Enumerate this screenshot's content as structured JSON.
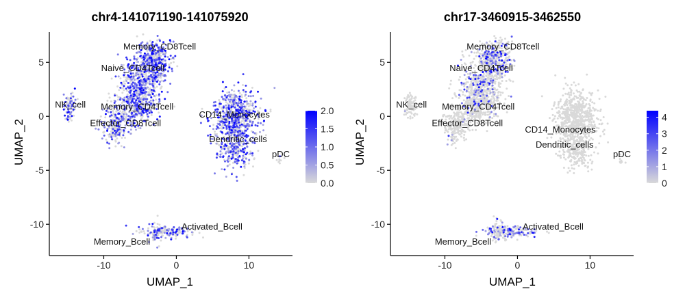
{
  "chart_data": [
    {
      "type": "scatter",
      "title": "chr4-141071190-141075920",
      "xlabel": "UMAP_1",
      "ylabel": "UMAP_2",
      "xlim": [
        -17.5,
        16
      ],
      "ylim": [
        -12.9,
        7.8
      ],
      "xticks": [
        -10,
        0,
        10
      ],
      "yticks": [
        5,
        0,
        -5,
        -10
      ],
      "grid": false,
      "color_scale": {
        "low": "#d9d9d9",
        "high": "#0000ff",
        "min": 0,
        "max": 2.0,
        "ticks": [
          0.0,
          0.5,
          1.0,
          1.5,
          2.0
        ],
        "tick_labels": [
          "0.0",
          "0.5",
          "1.0",
          "1.5",
          "2.0"
        ]
      },
      "legend_position": "right",
      "cluster_labels": [
        {
          "text": "Memory_CD8Tcell",
          "x": -2.3,
          "y": 6.2
        },
        {
          "text": "Naive_CD4Tcell",
          "x": -6.0,
          "y": 4.2
        },
        {
          "text": "NK_cell",
          "x": -14.6,
          "y": 0.8
        },
        {
          "text": "Memory_CD4Tcell",
          "x": -5.4,
          "y": 0.6
        },
        {
          "text": "Effector_CD8Tcell",
          "x": -7.0,
          "y": -0.9
        },
        {
          "text": "CD14_Monocytes",
          "x": 8.0,
          "y": -0.1
        },
        {
          "text": "Dendritic_cells",
          "x": 8.5,
          "y": -2.4
        },
        {
          "text": "pDC",
          "x": 14.4,
          "y": -3.8
        },
        {
          "text": "Activated_Bcell",
          "x": 4.9,
          "y": -10.5
        },
        {
          "text": "Memory_Bcell",
          "x": -7.5,
          "y": -11.9
        }
      ],
      "clusters": [
        {
          "name": "Memory_CD8Tcell",
          "cx": -3.2,
          "cy": 5.3,
          "sx": 1.2,
          "sy": 0.9,
          "n": 420,
          "mean_expr": 0.65
        },
        {
          "name": "Naive_CD4Tcell",
          "cx": -4.8,
          "cy": 3.0,
          "sx": 1.5,
          "sy": 1.1,
          "n": 420,
          "mean_expr": 0.55
        },
        {
          "name": "Memory_CD4Tcell",
          "cx": -5.6,
          "cy": 1.0,
          "sx": 1.4,
          "sy": 0.9,
          "n": 320,
          "mean_expr": 0.5
        },
        {
          "name": "Effector_CD8Tcell",
          "cx": -8.5,
          "cy": -0.9,
          "sx": 0.9,
          "sy": 0.8,
          "n": 200,
          "mean_expr": 0.45
        },
        {
          "name": "NK_cell",
          "cx": -14.7,
          "cy": 0.9,
          "sx": 0.4,
          "sy": 0.6,
          "n": 90,
          "mean_expr": 0.5
        },
        {
          "name": "CD14_Monocytes",
          "cx": 8.1,
          "cy": -0.2,
          "sx": 1.5,
          "sy": 1.3,
          "n": 650,
          "mean_expr": 0.6
        },
        {
          "name": "Dendritic_cells",
          "cx": 8.0,
          "cy": -3.2,
          "sx": 1.1,
          "sy": 0.9,
          "n": 220,
          "mean_expr": 0.6
        },
        {
          "name": "pDC",
          "cx": 14.3,
          "cy": -4.1,
          "sx": 0.2,
          "sy": 0.2,
          "n": 8,
          "mean_expr": 0.2
        },
        {
          "name": "Activated_Bcell",
          "cx": -1.0,
          "cy": -10.7,
          "sx": 1.8,
          "sy": 0.25,
          "n": 160,
          "mean_expr": 0.4
        },
        {
          "name": "Memory_Bcell",
          "cx": -2.8,
          "cy": -10.8,
          "sx": 0.5,
          "sy": 0.6,
          "n": 60,
          "mean_expr": 0.5
        }
      ]
    },
    {
      "type": "scatter",
      "title": "chr17-3460915-3462550",
      "xlabel": "UMAP_1",
      "ylabel": "UMAP_2",
      "xlim": [
        -17.5,
        16
      ],
      "ylim": [
        -12.9,
        7.8
      ],
      "xticks": [
        -10,
        0,
        10
      ],
      "yticks": [
        5,
        0,
        -5,
        -10
      ],
      "grid": false,
      "color_scale": {
        "low": "#d9d9d9",
        "high": "#0000ff",
        "min": 0,
        "max": 4.4,
        "ticks": [
          0,
          1,
          2,
          3,
          4
        ],
        "tick_labels": [
          "0",
          "1",
          "2",
          "3",
          "4"
        ]
      },
      "legend_position": "right",
      "cluster_labels": [
        {
          "text": "Memory_CD8Tcell",
          "x": -2.0,
          "y": 6.2
        },
        {
          "text": "Naive_CD4Tcell",
          "x": -5.0,
          "y": 4.2
        },
        {
          "text": "NK_cell",
          "x": -14.6,
          "y": 0.8
        },
        {
          "text": "Memory_CD4Tcell",
          "x": -5.4,
          "y": 0.6
        },
        {
          "text": "Effector_CD8Tcell",
          "x": -6.9,
          "y": -0.9
        },
        {
          "text": "CD14_Monocytes",
          "x": 5.9,
          "y": -1.5
        },
        {
          "text": "Dendritic_cells",
          "x": 6.5,
          "y": -2.9
        },
        {
          "text": "pDC",
          "x": 14.4,
          "y": -3.8
        },
        {
          "text": "Activated_Bcell",
          "x": 4.9,
          "y": -10.5
        },
        {
          "text": "Memory_Bcell",
          "x": -7.5,
          "y": -11.9
        }
      ],
      "clusters": [
        {
          "name": "Memory_CD8Tcell",
          "cx": -3.2,
          "cy": 5.3,
          "sx": 1.2,
          "sy": 0.9,
          "n": 420,
          "mean_expr": 0.25
        },
        {
          "name": "Naive_CD4Tcell",
          "cx": -4.8,
          "cy": 3.0,
          "sx": 1.5,
          "sy": 1.1,
          "n": 420,
          "mean_expr": 0.22
        },
        {
          "name": "Memory_CD4Tcell",
          "cx": -5.6,
          "cy": 1.0,
          "sx": 1.4,
          "sy": 0.9,
          "n": 320,
          "mean_expr": 0.08
        },
        {
          "name": "Effector_CD8Tcell",
          "cx": -8.5,
          "cy": -0.9,
          "sx": 0.9,
          "sy": 0.8,
          "n": 200,
          "mean_expr": 0.02
        },
        {
          "name": "NK_cell",
          "cx": -14.7,
          "cy": 0.9,
          "sx": 0.4,
          "sy": 0.6,
          "n": 90,
          "mean_expr": 0.02
        },
        {
          "name": "CD14_Monocytes",
          "cx": 8.1,
          "cy": -0.2,
          "sx": 1.5,
          "sy": 1.3,
          "n": 650,
          "mean_expr": 0.0
        },
        {
          "name": "Dendritic_cells",
          "cx": 8.0,
          "cy": -3.2,
          "sx": 1.1,
          "sy": 0.9,
          "n": 220,
          "mean_expr": 0.0
        },
        {
          "name": "pDC",
          "cx": 14.3,
          "cy": -4.1,
          "sx": 0.2,
          "sy": 0.2,
          "n": 8,
          "mean_expr": 0.0
        },
        {
          "name": "Activated_Bcell",
          "cx": -1.0,
          "cy": -10.7,
          "sx": 1.8,
          "sy": 0.25,
          "n": 160,
          "mean_expr": 0.55
        },
        {
          "name": "Memory_Bcell",
          "cx": -2.8,
          "cy": -10.8,
          "sx": 0.5,
          "sy": 0.6,
          "n": 60,
          "mean_expr": 0.1
        }
      ]
    }
  ]
}
